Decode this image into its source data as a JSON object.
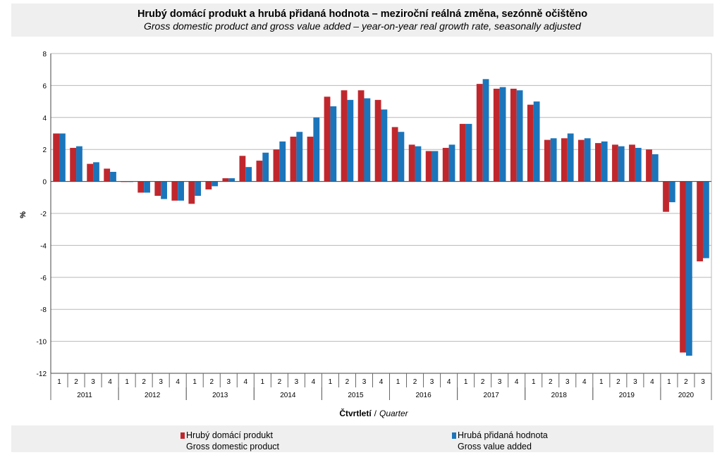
{
  "title": {
    "main": "Hrubý domácí produkt a hrubá přidaná hodnota – meziroční reálná změna, sezónně očištěno",
    "sub": "Gross domestic product and gross value added – year-on-year real growth rate, seasonally adjusted"
  },
  "chart_data": {
    "type": "bar",
    "ylabel": "%",
    "xlabel_cz": "Čtvrtletí",
    "xlabel_separator": "/",
    "xlabel_en": "Quarter",
    "ylim": [
      -12,
      8
    ],
    "yticks": [
      -12,
      -10,
      -8,
      -6,
      -4,
      -2,
      0,
      2,
      4,
      6,
      8
    ],
    "grid": true,
    "legend_position": "bottom",
    "categories": [
      {
        "year": "2011",
        "quarter": "1"
      },
      {
        "year": "2011",
        "quarter": "2"
      },
      {
        "year": "2011",
        "quarter": "3"
      },
      {
        "year": "2011",
        "quarter": "4"
      },
      {
        "year": "2012",
        "quarter": "1"
      },
      {
        "year": "2012",
        "quarter": "2"
      },
      {
        "year": "2012",
        "quarter": "3"
      },
      {
        "year": "2012",
        "quarter": "4"
      },
      {
        "year": "2013",
        "quarter": "1"
      },
      {
        "year": "2013",
        "quarter": "2"
      },
      {
        "year": "2013",
        "quarter": "3"
      },
      {
        "year": "2013",
        "quarter": "4"
      },
      {
        "year": "2014",
        "quarter": "1"
      },
      {
        "year": "2014",
        "quarter": "2"
      },
      {
        "year": "2014",
        "quarter": "3"
      },
      {
        "year": "2014",
        "quarter": "4"
      },
      {
        "year": "2015",
        "quarter": "1"
      },
      {
        "year": "2015",
        "quarter": "2"
      },
      {
        "year": "2015",
        "quarter": "3"
      },
      {
        "year": "2015",
        "quarter": "4"
      },
      {
        "year": "2016",
        "quarter": "1"
      },
      {
        "year": "2016",
        "quarter": "2"
      },
      {
        "year": "2016",
        "quarter": "3"
      },
      {
        "year": "2016",
        "quarter": "4"
      },
      {
        "year": "2017",
        "quarter": "1"
      },
      {
        "year": "2017",
        "quarter": "2"
      },
      {
        "year": "2017",
        "quarter": "3"
      },
      {
        "year": "2017",
        "quarter": "4"
      },
      {
        "year": "2018",
        "quarter": "1"
      },
      {
        "year": "2018",
        "quarter": "2"
      },
      {
        "year": "2018",
        "quarter": "3"
      },
      {
        "year": "2018",
        "quarter": "4"
      },
      {
        "year": "2019",
        "quarter": "1"
      },
      {
        "year": "2019",
        "quarter": "2"
      },
      {
        "year": "2019",
        "quarter": "3"
      },
      {
        "year": "2019",
        "quarter": "4"
      },
      {
        "year": "2020",
        "quarter": "1"
      },
      {
        "year": "2020",
        "quarter": "2"
      },
      {
        "year": "2020",
        "quarter": "3"
      }
    ],
    "series": [
      {
        "name_cz": "Hrubý domácí produkt",
        "name_en": "Gross domestic product",
        "color": "#c0272d",
        "values": [
          3.0,
          2.1,
          1.1,
          0.8,
          0.0,
          -0.7,
          -0.9,
          -1.2,
          -1.4,
          -0.5,
          0.2,
          1.6,
          1.3,
          2.0,
          2.8,
          2.8,
          5.3,
          5.7,
          5.7,
          5.1,
          3.4,
          2.3,
          1.9,
          2.1,
          3.6,
          6.1,
          5.8,
          5.8,
          4.8,
          2.6,
          2.7,
          2.6,
          2.4,
          2.3,
          2.3,
          2.0,
          -1.9,
          -10.7,
          -5.0
        ]
      },
      {
        "name_cz": "Hrubá přidaná hodnota",
        "name_en": "Gross value added",
        "color": "#1b75bb",
        "values": [
          3.0,
          2.2,
          1.2,
          0.6,
          0.0,
          -0.7,
          -1.1,
          -1.2,
          -0.9,
          -0.3,
          0.2,
          0.9,
          1.8,
          2.5,
          3.1,
          4.0,
          4.7,
          5.1,
          5.2,
          4.5,
          3.1,
          2.2,
          1.9,
          2.3,
          3.6,
          6.4,
          5.9,
          5.7,
          5.0,
          2.7,
          3.0,
          2.7,
          2.5,
          2.2,
          2.1,
          1.7,
          -1.3,
          -10.9,
          -4.8
        ]
      }
    ]
  }
}
